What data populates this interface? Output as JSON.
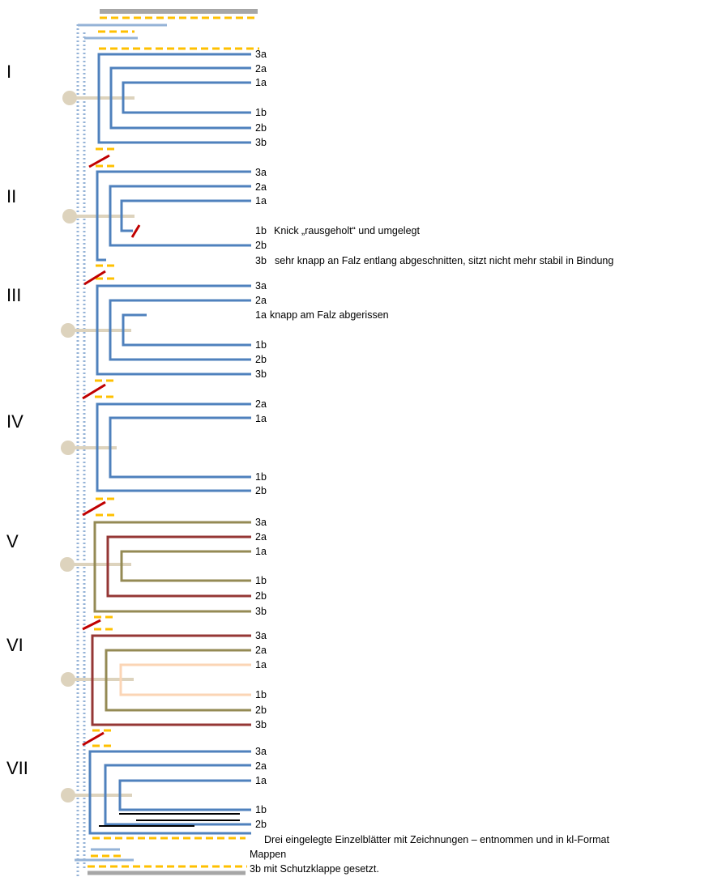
{
  "colors": {
    "blue": "#4f81bd",
    "olive": "#948a54",
    "rust": "#953735",
    "peach": "#fbd5b5",
    "tan": "#ddd3bd",
    "yellow": "#ffc000",
    "cut": "#c00000",
    "light_blue": "#95b3d7",
    "gray": "#a6a6a6",
    "black": "#000000"
  },
  "layers": [
    {
      "numeral": "I",
      "leaves": [
        {
          "label": "3a",
          "note": ""
        },
        {
          "label": "2a",
          "note": ""
        },
        {
          "label": "1a",
          "note": ""
        },
        {
          "label": "1b",
          "note": ""
        },
        {
          "label": "2b",
          "note": ""
        },
        {
          "label": "3b",
          "note": ""
        }
      ]
    },
    {
      "numeral": "II",
      "leaves": [
        {
          "label": "3a",
          "note": ""
        },
        {
          "label": "2a",
          "note": ""
        },
        {
          "label": "1a",
          "note": ""
        },
        {
          "label": "1b",
          "note": "Knick „rausgeholt“ und umgelegt"
        },
        {
          "label": "2b",
          "note": ""
        },
        {
          "label": "3b",
          "note": "sehr knapp an Falz entlang abgeschnitten, sitzt nicht mehr stabil in Bindung"
        }
      ]
    },
    {
      "numeral": "III",
      "leaves": [
        {
          "label": "3a",
          "note": ""
        },
        {
          "label": "2a",
          "note": ""
        },
        {
          "label": "1a",
          "note": "knapp am Falz abgerissen"
        },
        {
          "label": "1b",
          "note": ""
        },
        {
          "label": "2b",
          "note": ""
        },
        {
          "label": "3b",
          "note": ""
        }
      ]
    },
    {
      "numeral": "IV",
      "leaves": [
        {
          "label": "2a",
          "note": ""
        },
        {
          "label": "1a",
          "note": ""
        },
        {
          "label": "1b",
          "note": ""
        },
        {
          "label": "2b",
          "note": ""
        }
      ]
    },
    {
      "numeral": "V",
      "leaves": [
        {
          "label": "3a",
          "note": ""
        },
        {
          "label": "2a",
          "note": ""
        },
        {
          "label": "1a",
          "note": ""
        },
        {
          "label": "1b",
          "note": ""
        },
        {
          "label": "2b",
          "note": ""
        },
        {
          "label": "3b",
          "note": ""
        }
      ]
    },
    {
      "numeral": "VI",
      "leaves": [
        {
          "label": "3a",
          "note": ""
        },
        {
          "label": "2a",
          "note": ""
        },
        {
          "label": "1a",
          "note": ""
        },
        {
          "label": "1b",
          "note": ""
        },
        {
          "label": "2b",
          "note": ""
        },
        {
          "label": "3b",
          "note": ""
        }
      ]
    },
    {
      "numeral": "VII",
      "leaves": [
        {
          "label": "3a",
          "note": ""
        },
        {
          "label": "2a",
          "note": ""
        },
        {
          "label": "1a",
          "note": ""
        },
        {
          "label": "1b",
          "note": ""
        },
        {
          "label": "2b",
          "note": ""
        }
      ]
    }
  ],
  "end_notes": {
    "insert_note": "Drei eingelegte Einzelblätter mit Zeichnungen – entnommen und in kl-Format",
    "mappen": "Mappen",
    "closing": "3b mit Schutzklappe gesetzt."
  }
}
